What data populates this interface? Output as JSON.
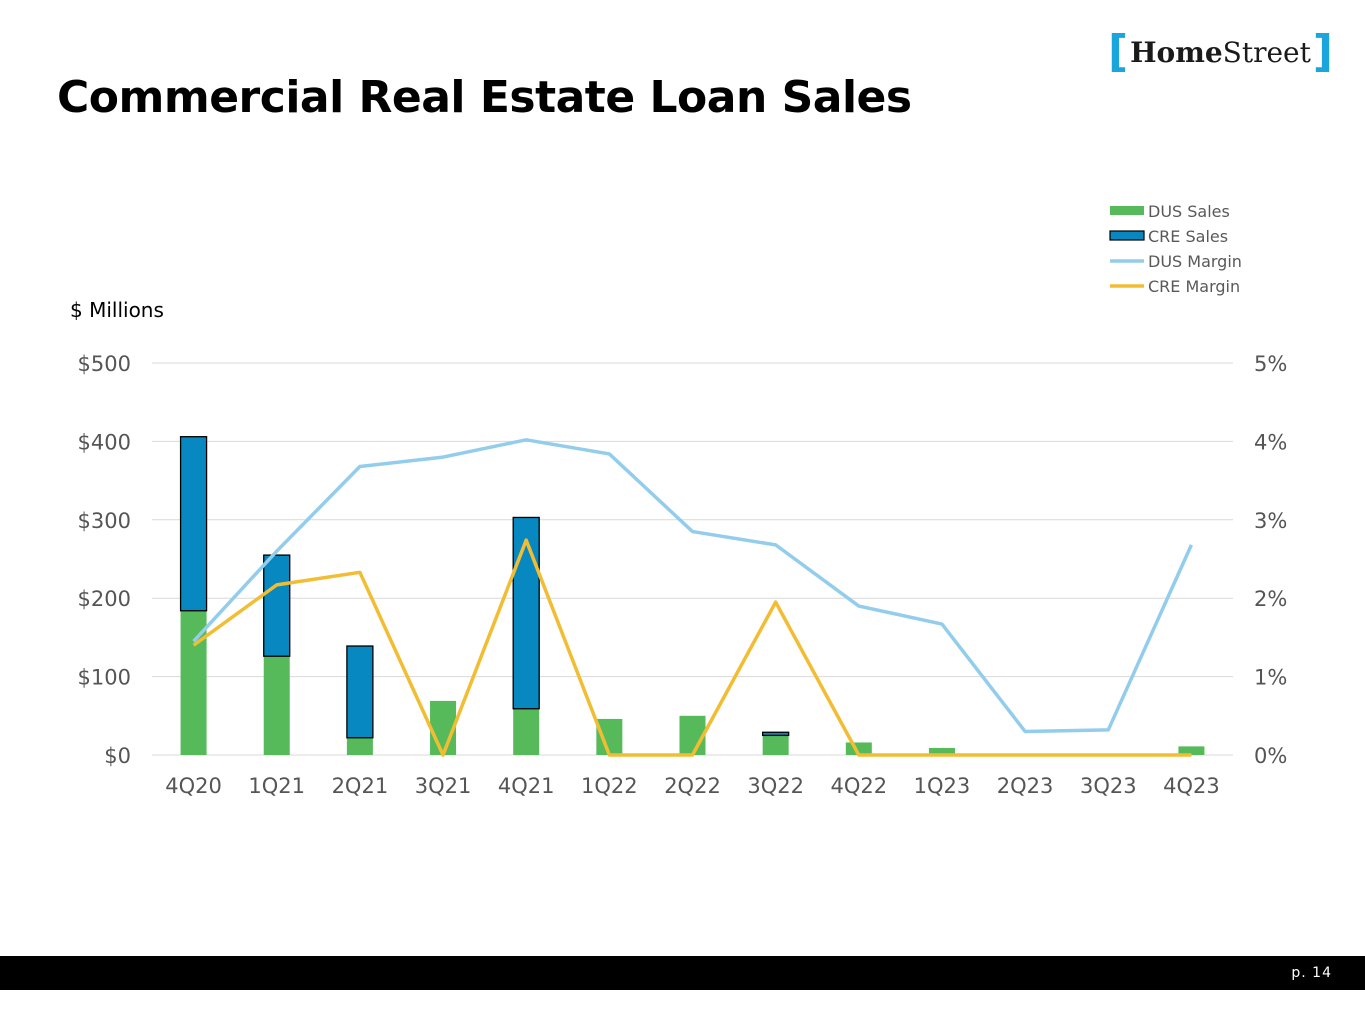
{
  "header": {
    "title": "Commercial Real Estate Loan Sales",
    "logo": {
      "brand_bold": "Home",
      "brand_regular": "Street"
    }
  },
  "footer": {
    "page_label": "p. 14"
  },
  "colors": {
    "dus_sales": "#56ba5a",
    "cre_sales": "#0888c1",
    "dus_margin": "#93cdec",
    "cre_margin": "#f2bd33",
    "grid": "#d9d9d9",
    "axis_text": "#555555",
    "logo_bracket": "#1aa6dd"
  },
  "chart_data": {
    "type": "bar",
    "subtype": "stacked bar with secondary-axis lines",
    "title": "",
    "ylabel": "$ Millions",
    "xlabel": "",
    "categories": [
      "4Q20",
      "1Q21",
      "2Q21",
      "3Q21",
      "4Q21",
      "1Q22",
      "2Q22",
      "3Q22",
      "4Q22",
      "1Q23",
      "2Q23",
      "3Q23",
      "4Q23"
    ],
    "ylim": [
      0,
      500
    ],
    "y_ticks": [
      0,
      100,
      200,
      300,
      400,
      500
    ],
    "y_tick_labels": [
      "$0",
      "$100",
      "$200",
      "$300",
      "$400",
      "$500"
    ],
    "y2lim": [
      0,
      5
    ],
    "y2_ticks": [
      0,
      1,
      2,
      3,
      4,
      5
    ],
    "y2_tick_labels": [
      "0%",
      "1%",
      "2%",
      "3%",
      "4%",
      "5%"
    ],
    "grid": true,
    "legend": "top-right",
    "series": [
      {
        "name": "DUS Sales",
        "kind": "bar",
        "axis": "left",
        "values": [
          184,
          126,
          22,
          69,
          59,
          46,
          50,
          25,
          16,
          9,
          0,
          0,
          11
        ]
      },
      {
        "name": "CRE Sales",
        "kind": "bar",
        "axis": "left",
        "stacked_on": "DUS Sales",
        "values": [
          222,
          129,
          117,
          0,
          244,
          0,
          0,
          4,
          0,
          0,
          0,
          0,
          0
        ]
      },
      {
        "name": "DUS Margin",
        "kind": "line",
        "axis": "right",
        "values": [
          1.45,
          2.6,
          3.68,
          3.8,
          4.02,
          3.84,
          2.85,
          2.68,
          1.9,
          1.67,
          0.3,
          0.32,
          2.68
        ]
      },
      {
        "name": "CRE Margin",
        "kind": "line",
        "axis": "right",
        "values": [
          1.4,
          2.17,
          2.33,
          0.0,
          2.74,
          0.0,
          0.0,
          1.95,
          0.0,
          0.0,
          0.0,
          0.0,
          0.0
        ]
      }
    ]
  }
}
